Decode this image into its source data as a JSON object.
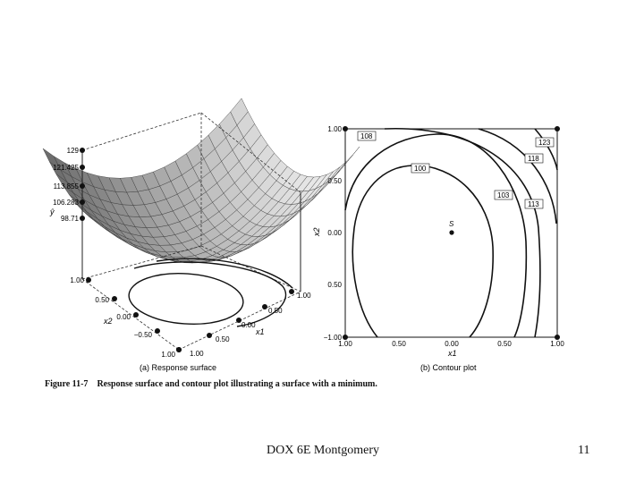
{
  "figure": {
    "caption_label": "Figure 11-7",
    "caption_text": "Response surface and contour plot illustrating a surface with a minimum.",
    "left_panel": {
      "subtitle": "(a) Response surface",
      "z_ticks": [
        "129",
        "121.425",
        "113.855",
        "106.283",
        "98.71"
      ],
      "z_axis_label": "ŷ",
      "x2_ticks": [
        "1.00",
        "0.50",
        "0.00",
        "−0.50",
        "1.00"
      ],
      "x2_label": "x2",
      "x1_ticks": [
        "1.00",
        "0.50",
        "0.00",
        "0.50",
        "1.00"
      ],
      "x1_label": "x1"
    },
    "right_panel": {
      "subtitle": "(b) Contour plot",
      "y_ticks": [
        "1.00",
        "0.50",
        "0.00",
        "0.50",
        "−1.00"
      ],
      "y_label": "x2",
      "x_ticks": [
        "1.00",
        "0.50",
        "0.00",
        "0.50",
        "1.00"
      ],
      "x_label": "x1",
      "contour_labels": [
        "108",
        "100",
        "103",
        "113",
        "118",
        "123"
      ],
      "stationary_point_label": "S"
    }
  },
  "footer": {
    "text": "DOX 6E Montgomery",
    "page_number": "11"
  }
}
